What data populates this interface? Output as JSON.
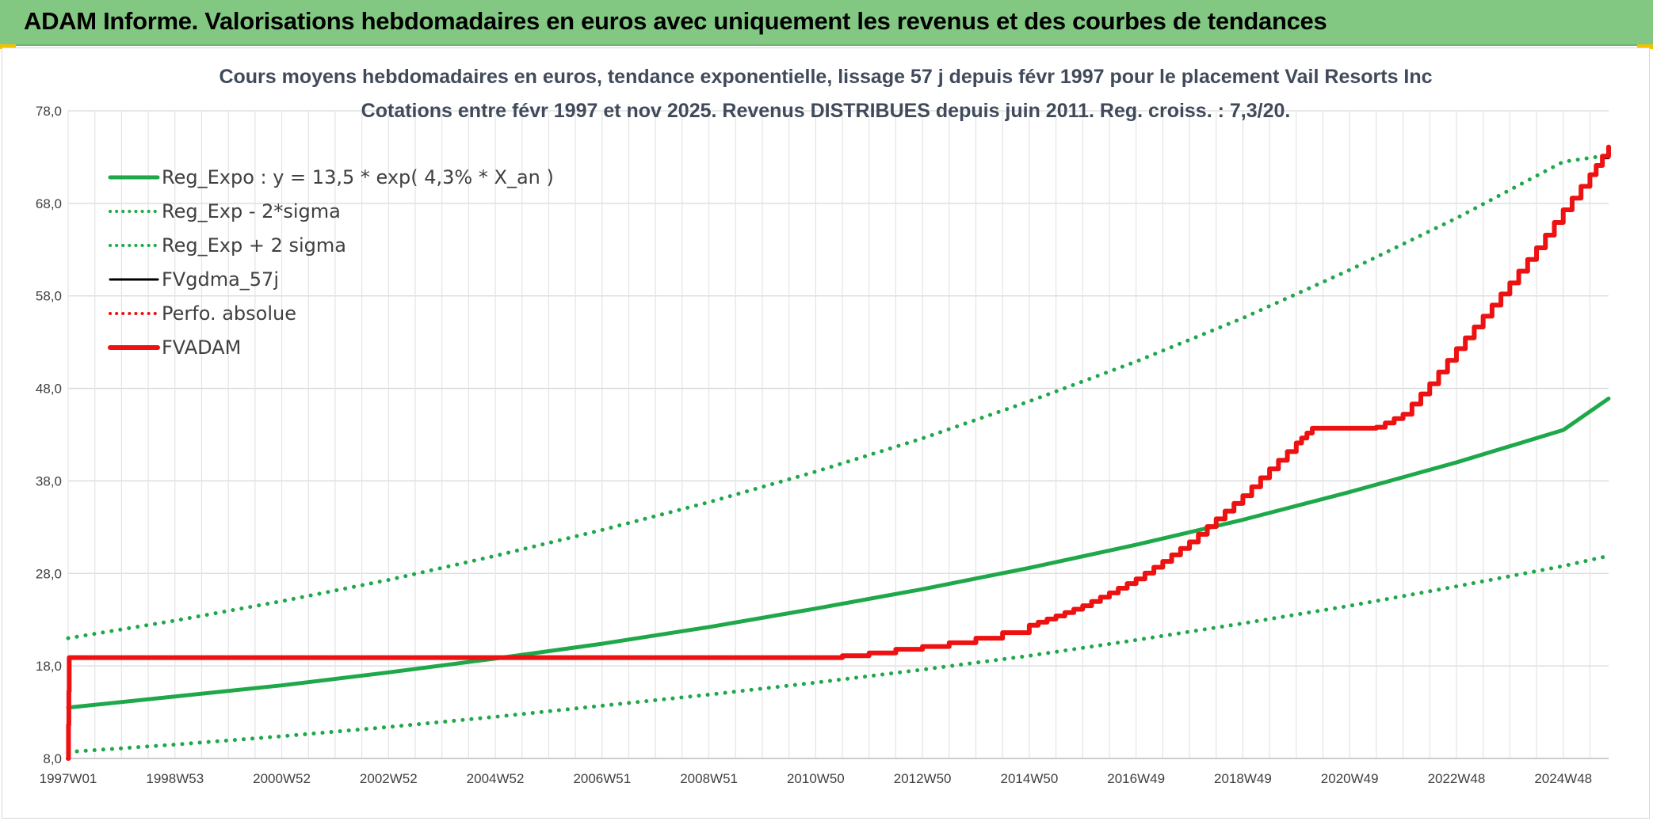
{
  "header": {
    "title": "ADAM Informe. Valorisations hebdomadaires en euros avec uniquement les revenus et des courbes de tendances"
  },
  "colors": {
    "header_bg": "#82c882",
    "green_series": "#1fa84a",
    "red_series": "#ee1111",
    "black_series": "#000000",
    "title_text": "#404a5a"
  },
  "chart_data": {
    "type": "line",
    "title": "Cours moyens hebdomadaires en euros, tendance exponentielle, lissage 57 j depuis févr 1997 pour le placement Vail Resorts Inc",
    "subtitle": "Cotations entre févr 1997 et nov 2025. Revenus DISTRIBUES depuis juin 2011. Reg. croiss. : 7,3/20.",
    "xlabel": "",
    "ylabel": "",
    "ylim": [
      8,
      78
    ],
    "y_ticks": [
      "8,0",
      "18,0",
      "28,0",
      "38,0",
      "48,0",
      "58,0",
      "68,0",
      "78,0"
    ],
    "x_unit": "year",
    "xlim": [
      1997.0,
      2025.85
    ],
    "x_ticks": [
      {
        "label": "1997W01",
        "x": 1997.0
      },
      {
        "label": "1998W53",
        "x": 1999.0
      },
      {
        "label": "2000W52",
        "x": 2001.0
      },
      {
        "label": "2002W52",
        "x": 2003.0
      },
      {
        "label": "2004W52",
        "x": 2005.0
      },
      {
        "label": "2006W51",
        "x": 2007.0
      },
      {
        "label": "2008W51",
        "x": 2009.0
      },
      {
        "label": "2010W50",
        "x": 2011.0
      },
      {
        "label": "2012W50",
        "x": 2013.0
      },
      {
        "label": "2014W50",
        "x": 2015.0
      },
      {
        "label": "2016W49",
        "x": 2017.0
      },
      {
        "label": "2018W49",
        "x": 2019.0
      },
      {
        "label": "2020W49",
        "x": 2021.0
      },
      {
        "label": "2022W48",
        "x": 2023.0
      },
      {
        "label": "2024W48",
        "x": 2025.0
      }
    ],
    "grid": true,
    "legend_position": "top-left",
    "series": [
      {
        "name": "Reg_Expo : y = 13,5 * exp( 4,3% *  X_an )",
        "color": "#1fa84a",
        "style": "solid",
        "width": 5,
        "x": [
          1997.0,
          1999.0,
          2001.0,
          2003.0,
          2005.0,
          2007.0,
          2009.0,
          2011.0,
          2013.0,
          2015.0,
          2017.0,
          2019.0,
          2021.0,
          2023.0,
          2025.0,
          2025.85
        ],
        "y": [
          13.5,
          14.7,
          15.9,
          17.3,
          18.8,
          20.4,
          22.2,
          24.2,
          26.3,
          28.6,
          31.1,
          33.8,
          36.8,
          40.0,
          43.5,
          46.9
        ]
      },
      {
        "name": "Reg_Exp - 2*sigma",
        "color": "#1fa84a",
        "style": "dotted",
        "width": 5,
        "x": [
          1997.0,
          1999.0,
          2001.0,
          2003.0,
          2005.0,
          2007.0,
          2009.0,
          2011.0,
          2013.0,
          2015.0,
          2017.0,
          2019.0,
          2021.0,
          2023.0,
          2025.0,
          2025.85
        ],
        "y": [
          8.7,
          9.5,
          10.4,
          11.4,
          12.5,
          13.7,
          14.9,
          16.2,
          17.6,
          19.1,
          20.8,
          22.6,
          24.5,
          26.6,
          28.8,
          29.9
        ]
      },
      {
        "name": "Reg_Exp + 2 sigma",
        "color": "#1fa84a",
        "style": "dotted",
        "width": 5,
        "x": [
          1997.0,
          1999.0,
          2001.0,
          2003.0,
          2005.0,
          2007.0,
          2009.0,
          2011.0,
          2013.0,
          2015.0,
          2017.0,
          2019.0,
          2021.0,
          2023.0,
          2025.0,
          2025.85
        ],
        "y": [
          21.0,
          22.9,
          25.0,
          27.3,
          29.9,
          32.7,
          35.7,
          39.0,
          42.6,
          46.6,
          50.9,
          55.6,
          60.8,
          66.4,
          72.5,
          73.2
        ]
      },
      {
        "name": "FVgdma_57j",
        "color": "#000000",
        "style": "solid",
        "width": 3,
        "x": [
          1997.0,
          1997.02,
          2011.0,
          2011.5,
          2012.0,
          2012.5,
          2013.0,
          2013.5,
          2014.0,
          2014.5,
          2015.0,
          2015.5,
          2016.0,
          2016.5,
          2017.0,
          2017.5,
          2018.0,
          2018.5,
          2019.0,
          2019.5,
          2020.0,
          2020.3,
          2021.0,
          2021.5,
          2022.0,
          2022.5,
          2023.0,
          2023.5,
          2024.0,
          2024.5,
          2025.0,
          2025.5,
          2025.85
        ],
        "y": [
          8.0,
          18.9,
          18.9,
          19.1,
          19.4,
          19.8,
          20.1,
          20.5,
          21.0,
          21.6,
          22.4,
          23.4,
          24.5,
          25.9,
          27.4,
          29.3,
          31.4,
          33.9,
          36.4,
          39.3,
          42.1,
          43.7,
          43.7,
          43.8,
          45.2,
          48.5,
          52.3,
          55.8,
          59.4,
          63.2,
          67.3,
          71.1,
          73.8
        ]
      },
      {
        "name": "Perfo. absolue",
        "color": "#ee1111",
        "style": "dotted",
        "width": 3,
        "x": [],
        "y": []
      },
      {
        "name": "FVADAM",
        "color": "#ee1111",
        "style": "solid",
        "width": 6,
        "x": [
          1997.0,
          1997.02,
          2011.0,
          2011.5,
          2012.0,
          2012.5,
          2013.0,
          2013.5,
          2014.0,
          2014.5,
          2015.0,
          2015.5,
          2016.0,
          2016.5,
          2017.0,
          2017.5,
          2018.0,
          2018.5,
          2019.0,
          2019.5,
          2020.0,
          2020.3,
          2021.0,
          2021.5,
          2022.0,
          2022.5,
          2023.0,
          2023.5,
          2024.0,
          2024.5,
          2025.0,
          2025.5,
          2025.85
        ],
        "y": [
          8.0,
          18.9,
          18.9,
          19.1,
          19.4,
          19.8,
          20.1,
          20.5,
          21.0,
          21.6,
          22.4,
          23.4,
          24.5,
          25.9,
          27.4,
          29.3,
          31.4,
          33.9,
          36.4,
          39.3,
          42.1,
          43.7,
          43.7,
          43.8,
          45.2,
          48.5,
          52.3,
          55.8,
          59.4,
          63.2,
          67.3,
          71.1,
          74.1
        ]
      }
    ]
  }
}
